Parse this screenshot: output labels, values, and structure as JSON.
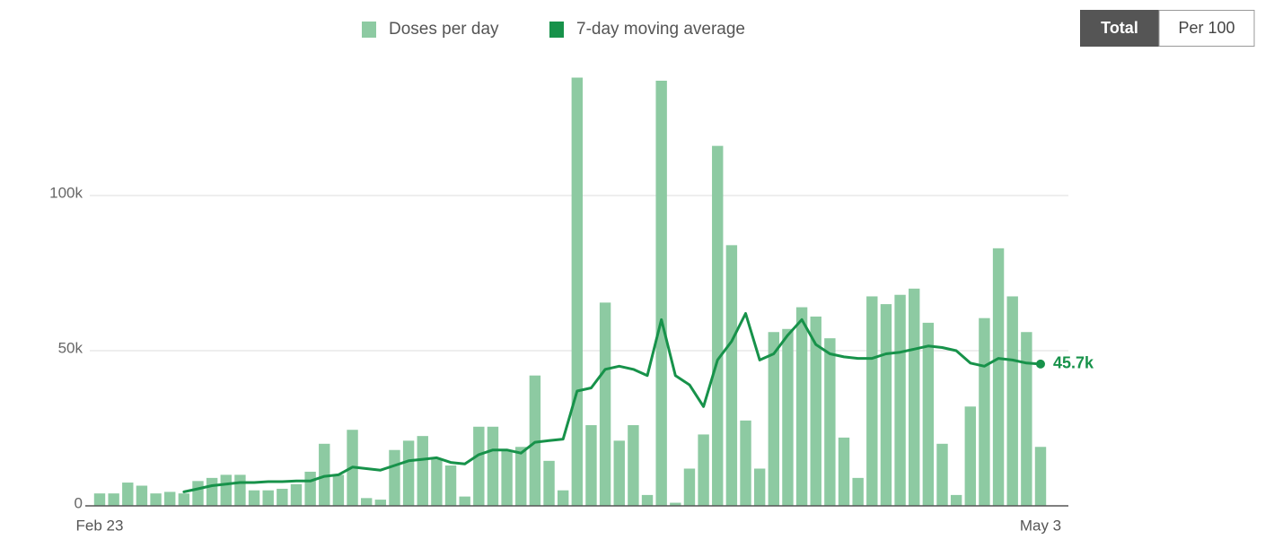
{
  "chart_data": {
    "type": "bar-line",
    "categories": [
      "Feb 23",
      null,
      null,
      null,
      null,
      null,
      null,
      null,
      null,
      null,
      null,
      null,
      null,
      null,
      null,
      null,
      null,
      null,
      null,
      null,
      null,
      null,
      null,
      null,
      null,
      null,
      null,
      null,
      null,
      null,
      null,
      null,
      null,
      null,
      null,
      null,
      null,
      null,
      null,
      null,
      null,
      null,
      null,
      null,
      null,
      null,
      null,
      null,
      null,
      null,
      null,
      null,
      null,
      null,
      null,
      null,
      null,
      null,
      null,
      null,
      null,
      null,
      null,
      null,
      null,
      null,
      null,
      "May 3"
    ],
    "series": [
      {
        "name": "Doses per day",
        "color": "#8dcaa2",
        "values": [
          4000,
          4000,
          7500,
          6500,
          4000,
          4500,
          4000,
          8000,
          9000,
          10000,
          10000,
          5000,
          5000,
          5500,
          7000,
          11000,
          20000,
          10000,
          24500,
          2500,
          2000,
          18000,
          21000,
          22500,
          15000,
          13000,
          3000,
          25500,
          25500,
          18000,
          19000,
          42000,
          14500,
          5000,
          138000,
          26000,
          65500,
          21000,
          26000,
          3500,
          137000,
          1000,
          12000,
          23000,
          116000,
          84000,
          27500,
          12000,
          56000,
          57000,
          64000,
          61000,
          54000,
          22000,
          9000,
          67500,
          65000,
          68000,
          70000,
          59000,
          20000,
          3500,
          32000,
          60500,
          83000,
          67500,
          56000,
          19000
        ]
      },
      {
        "name": "7-day moving average",
        "color": "#17924a",
        "values": [
          null,
          null,
          null,
          null,
          null,
          null,
          4500,
          5500,
          6500,
          7000,
          7500,
          7500,
          7800,
          7800,
          8000,
          8000,
          9500,
          10000,
          12500,
          12000,
          11500,
          13000,
          14500,
          15000,
          15500,
          14000,
          13500,
          16500,
          18000,
          18000,
          17000,
          20500,
          21000,
          21500,
          37000,
          38000,
          44000,
          45000,
          44000,
          42000,
          60000,
          42000,
          39000,
          32000,
          47000,
          53000,
          62000,
          47000,
          49000,
          55000,
          60000,
          52000,
          49000,
          48000,
          47500,
          47500,
          49000,
          49500,
          50500,
          51500,
          51000,
          50000,
          46000,
          45000,
          47500,
          47000,
          46000,
          45700
        ],
        "value_labels": [
          null,
          null,
          null,
          null,
          null,
          null,
          null,
          null,
          null,
          null,
          null,
          null,
          null,
          null,
          null,
          null,
          null,
          null,
          null,
          null,
          null,
          null,
          null,
          null,
          null,
          null,
          null,
          null,
          null,
          null,
          null,
          null,
          null,
          null,
          null,
          null,
          null,
          null,
          null,
          null,
          null,
          null,
          null,
          null,
          null,
          null,
          null,
          null,
          null,
          null,
          null,
          null,
          null,
          null,
          null,
          null,
          null,
          null,
          null,
          null,
          null,
          null,
          null,
          null,
          null,
          null,
          null,
          "45.7k"
        ]
      }
    ],
    "ylim": [
      0,
      140000
    ],
    "yticks": [
      0,
      {
        "value": 50000,
        "label": "50k"
      },
      {
        "value": 100000,
        "label": "100k"
      }
    ],
    "grid": true,
    "toggle": [
      "Total",
      "Per 100"
    ]
  }
}
